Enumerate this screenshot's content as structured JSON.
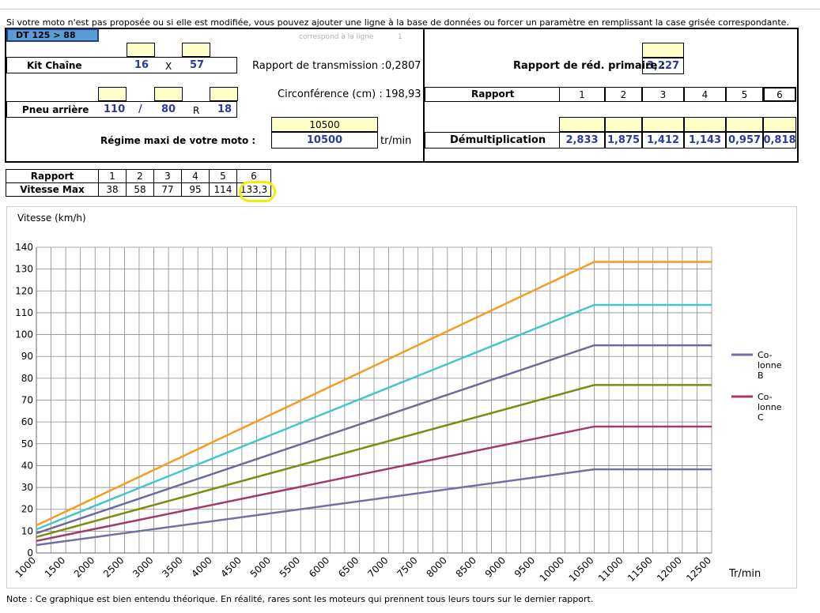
{
  "note_top": "Si votre moto n'est pas proposée ou si elle est modifiée, vous pouvez ajouter une ligne à la base de données ou forcer un paramètre en remplissant la case grisée correspondante.",
  "model_tab": "DT 125 > 88",
  "row_ref": {
    "label": "correspond à la ligne",
    "value": "1"
  },
  "kit": {
    "label": "Kit Chaîne",
    "front": "16",
    "sep": "X",
    "rear": "57"
  },
  "rapport_transmission": {
    "label": "Rapport de transmission :",
    "value": "0,2807"
  },
  "tyre": {
    "label": "Pneu arrière",
    "width": "110",
    "sep": "/",
    "aspect": "80",
    "r": "R",
    "rim": "18"
  },
  "circumference": {
    "label": "Circonférence (cm) :",
    "value": "198,93"
  },
  "regime": {
    "label": "Régime maxi de votre moto :",
    "input": "10500",
    "value": "10500",
    "unit": "tr/min"
  },
  "primary": {
    "label": "Rapport de réd. primaire :",
    "value": "3,227"
  },
  "gearbox": {
    "rapport_label": "Rapport",
    "gears": [
      "1",
      "2",
      "3",
      "4",
      "5",
      "6"
    ],
    "demult_label": "Démultiplication",
    "demult": [
      "2,833",
      "1,875",
      "1,412",
      "1,143",
      "0,957",
      "0,818"
    ]
  },
  "speed_table": {
    "rapport_label": "Rapport",
    "speed_label": "Vitesse Max",
    "gears": [
      "1",
      "2",
      "3",
      "4",
      "5",
      "6"
    ],
    "speeds": [
      "38",
      "58",
      "77",
      "95",
      "114",
      "133,3"
    ]
  },
  "chart_data": {
    "type": "line",
    "ylabel": "Vitesse (km/h)",
    "xlabel": "Tr/min",
    "ylim": [
      0,
      140
    ],
    "yticks": [
      "0",
      "10",
      "20",
      "30",
      "40",
      "50",
      "60",
      "70",
      "80",
      "90",
      "100",
      "110",
      "120",
      "130",
      "140"
    ],
    "xticks": [
      "1000",
      "1500",
      "2000",
      "2500",
      "3000",
      "3500",
      "4000",
      "4500",
      "5000",
      "5500",
      "6000",
      "6500",
      "7000",
      "7500",
      "8000",
      "8500",
      "9000",
      "9500",
      "10000",
      "10500",
      "11000",
      "11500",
      "12000",
      "12500"
    ],
    "grid": true,
    "legend_position": "right",
    "x": [
      1000,
      10500,
      12500
    ],
    "series": [
      {
        "name": "Co-lonne B",
        "color": "#7070a8",
        "values": [
          3.6,
          38.3,
          38.3
        ]
      },
      {
        "name": "Co-lonne C",
        "color": "#a03a6a",
        "values": [
          5.5,
          57.9,
          57.9
        ]
      },
      {
        "color": "#7f8a10",
        "values": [
          7.3,
          76.9,
          76.9
        ]
      },
      {
        "color": "#6a6aa0",
        "values": [
          9.0,
          95.1,
          95.1
        ]
      },
      {
        "color": "#40c8c8",
        "values": [
          10.8,
          113.6,
          113.6
        ]
      },
      {
        "color": "#f59b1f",
        "values": [
          12.6,
          133.3,
          133.3
        ]
      }
    ],
    "legend": [
      {
        "text": [
          "Co-",
          "lonne",
          "B"
        ],
        "color": "#7070a8"
      },
      {
        "text": [
          "Co-",
          "lonne",
          "C"
        ],
        "color": "#a03a6a"
      }
    ]
  },
  "note_bottom": "Note : Ce graphique est bien entendu théorique. En réalité, rares sont les moteurs qui prennent tous leurs tours sur le dernier rapport."
}
